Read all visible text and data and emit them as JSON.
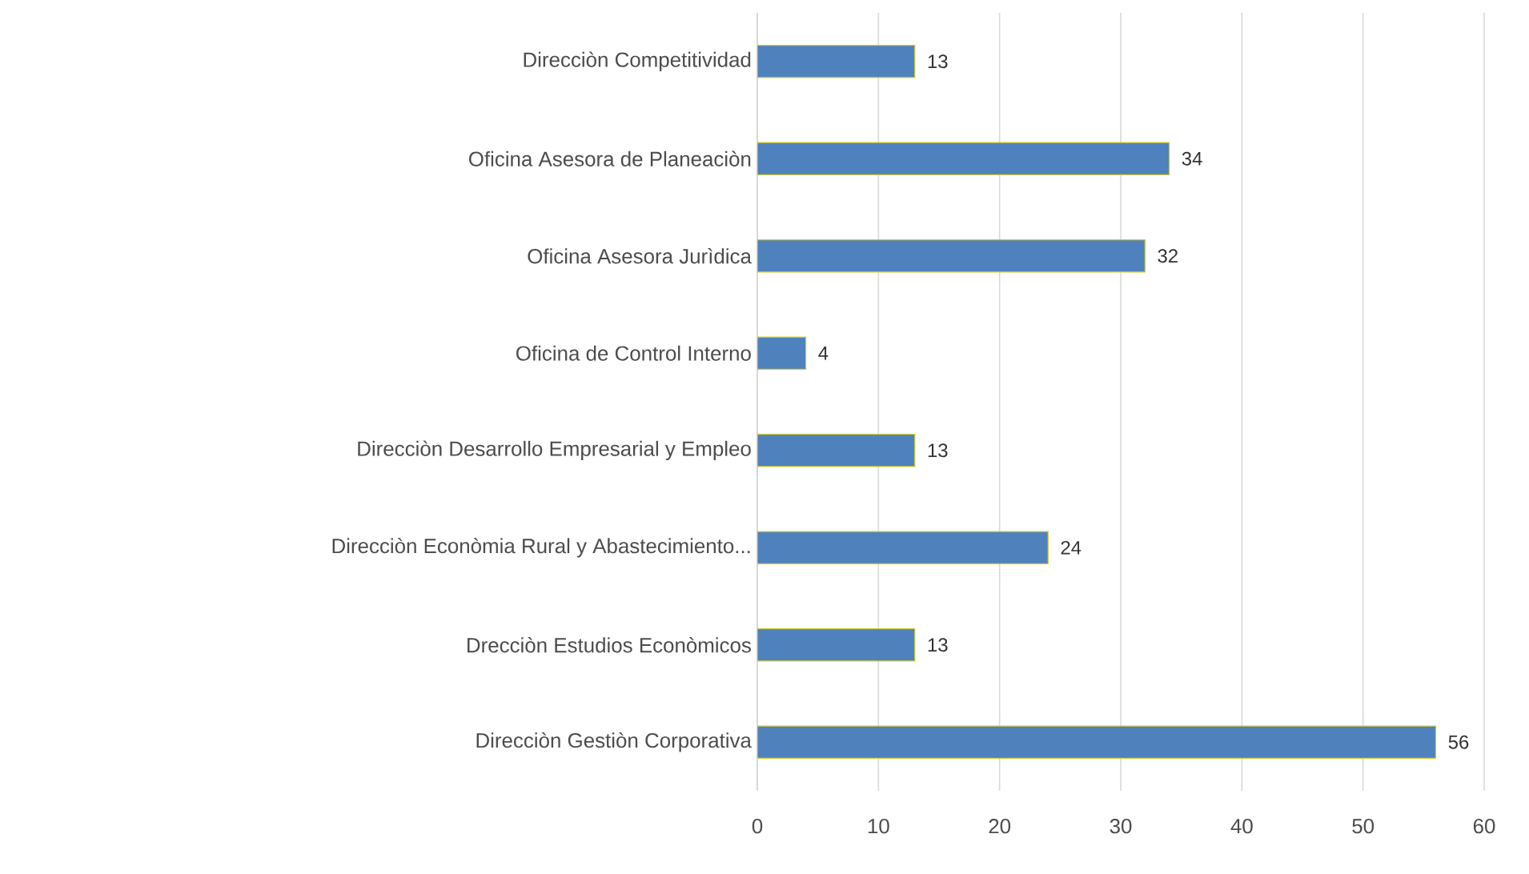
{
  "chart_data": {
    "type": "bar",
    "orientation": "horizontal",
    "categories": [
      "Direcciòn Competitividad",
      "Oficina Asesora de Planeaciòn",
      "Oficina Asesora  Jurìdica",
      "Oficina de Control Interno",
      "Direcciòn Desarrollo Empresarial y Empleo",
      "Direcciòn Econòmia Rural y Abastecimiento...",
      "Drecciòn Estudios Econòmicos",
      "Direcciòn Gestiòn Corporativa"
    ],
    "values": [
      13,
      34,
      32,
      4,
      13,
      24,
      13,
      56
    ],
    "color": "#4f81bd",
    "xlim": [
      0,
      60
    ],
    "xticks": [
      0,
      10,
      20,
      30,
      40,
      50,
      60
    ],
    "grid": "x",
    "data_labels": true
  }
}
